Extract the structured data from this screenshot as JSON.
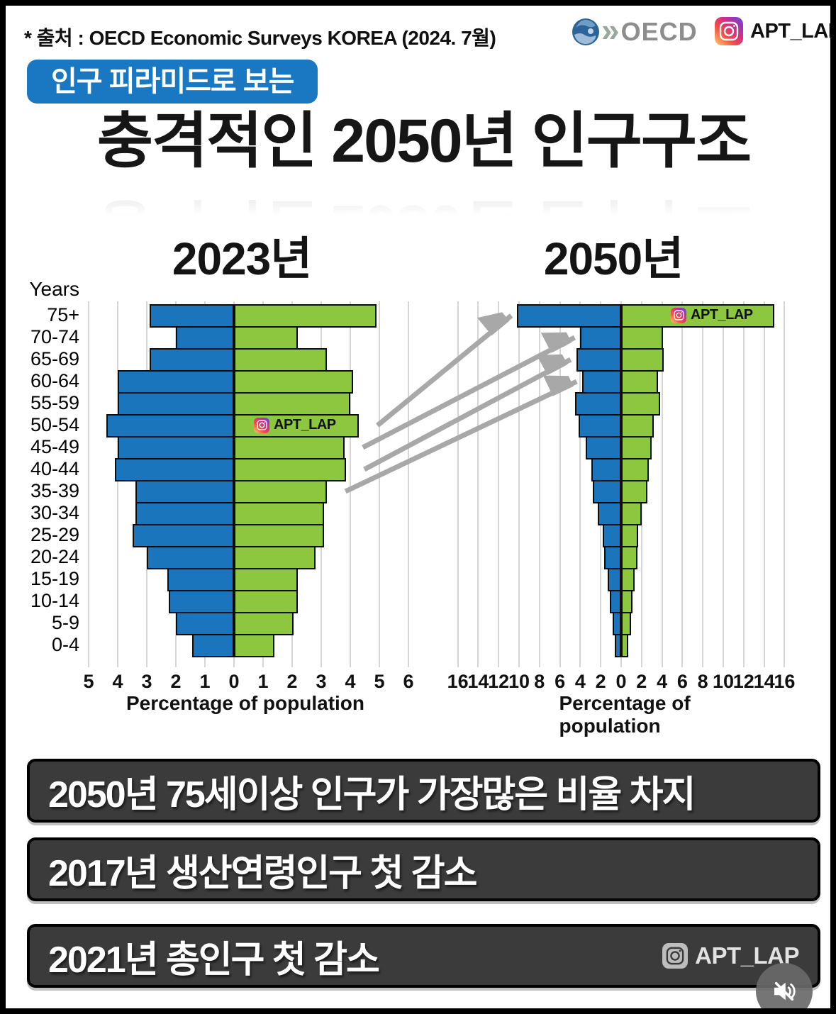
{
  "header": {
    "source_text": "* 출처 : OECD Economic Surveys KOREA (2024. 7월)",
    "oecd_logo_text": "OECD",
    "instagram_handle": "APT_LAP"
  },
  "badge": {
    "label": "인구 피라미드로 보는"
  },
  "title": {
    "text": "충격적인 2050년 인구구조"
  },
  "colors": {
    "male_bar": "#1b75bc",
    "female_bar": "#8dc63f",
    "badge_blue": "#1a78c2",
    "note_box": "#3b3b3b",
    "arrow": "#a8a8a8",
    "grid": "#d6d6d6"
  },
  "chart_data": [
    {
      "type": "bar",
      "subtype": "population-pyramid",
      "title": "2023년",
      "ylabel": "Years",
      "xlabel": "Percentage of population",
      "grid": true,
      "watermark": "APT_LAP",
      "categories": [
        "75+",
        "70-74",
        "65-69",
        "60-64",
        "55-59",
        "50-54",
        "45-49",
        "40-44",
        "35-39",
        "30-34",
        "25-29",
        "20-24",
        "15-19",
        "10-14",
        "5-9",
        "0-4"
      ],
      "series": [
        {
          "name": "male-left",
          "color": "#1b75bc",
          "values": [
            2.9,
            2.0,
            2.9,
            4.0,
            4.0,
            4.4,
            4.0,
            4.1,
            3.4,
            3.4,
            3.5,
            3.0,
            2.3,
            2.25,
            2.0,
            1.45
          ]
        },
        {
          "name": "female-right",
          "color": "#8dc63f",
          "values": [
            4.9,
            2.2,
            3.2,
            4.1,
            4.0,
            4.3,
            3.8,
            3.85,
            3.2,
            3.1,
            3.1,
            2.8,
            2.2,
            2.2,
            2.05,
            1.4
          ]
        }
      ],
      "xlim": [
        -5,
        6
      ],
      "tick_values": [
        -5,
        -4,
        -3,
        -2,
        -1,
        0,
        1,
        2,
        3,
        4,
        5,
        6
      ],
      "tick_labels": [
        "5",
        "4",
        "3",
        "2",
        "1",
        "0",
        "1",
        "2",
        "3",
        "4",
        "5",
        "6"
      ]
    },
    {
      "type": "bar",
      "subtype": "population-pyramid",
      "title": "2050년",
      "ylabel": "Years",
      "xlabel": "Percentage of population",
      "grid": true,
      "watermark": "APT_LAP",
      "categories": [
        "75+",
        "70-74",
        "65-69",
        "60-64",
        "55-59",
        "50-54",
        "45-49",
        "40-44",
        "35-39",
        "30-34",
        "25-29",
        "20-24",
        "15-19",
        "10-14",
        "5-9",
        "0-4"
      ],
      "series": [
        {
          "name": "male-left",
          "color": "#1b75bc",
          "values": [
            10.2,
            4.0,
            4.4,
            3.8,
            4.5,
            4.2,
            3.5,
            2.9,
            2.8,
            2.3,
            1.8,
            1.7,
            1.3,
            1.1,
            0.85,
            0.6
          ]
        },
        {
          "name": "female-right",
          "color": "#8dc63f",
          "values": [
            15.0,
            4.1,
            4.2,
            3.6,
            3.8,
            3.2,
            3.0,
            2.7,
            2.6,
            2.0,
            1.7,
            1.6,
            1.3,
            1.1,
            0.95,
            0.7
          ]
        }
      ],
      "xlim": [
        -16,
        16
      ],
      "tick_values": [
        -16,
        -14,
        -12,
        -10,
        -8,
        -6,
        -4,
        -2,
        0,
        2,
        4,
        6,
        8,
        10,
        12,
        14,
        16
      ],
      "tick_labels": [
        "16",
        "14",
        "12",
        "10",
        "8",
        "6",
        "4",
        "2",
        "0",
        "2",
        "4",
        "6",
        "8",
        "10",
        "12",
        "14",
        "16"
      ]
    }
  ],
  "annotations": {
    "arrows": [
      {
        "from_chart": "2023년",
        "from_category": "50-54",
        "to_chart": "2050년",
        "to_category": "75+"
      },
      {
        "from_chart": "2023년",
        "from_category": "45-49",
        "to_chart": "2050년",
        "to_category": "70-74"
      },
      {
        "from_chart": "2023년",
        "from_category": "40-44",
        "to_chart": "2050년",
        "to_category": "65-69"
      },
      {
        "from_chart": "2023년",
        "from_category": "35-39",
        "to_chart": "2050년",
        "to_category": "60-64"
      }
    ]
  },
  "footer": {
    "notes": [
      "2050년 75세이상 인구가 가장많은 비율 차지",
      "2017년 생산연령인구 첫 감소",
      "2021년 총인구 첫 감소"
    ],
    "instagram_handle": "APT_LAP"
  }
}
